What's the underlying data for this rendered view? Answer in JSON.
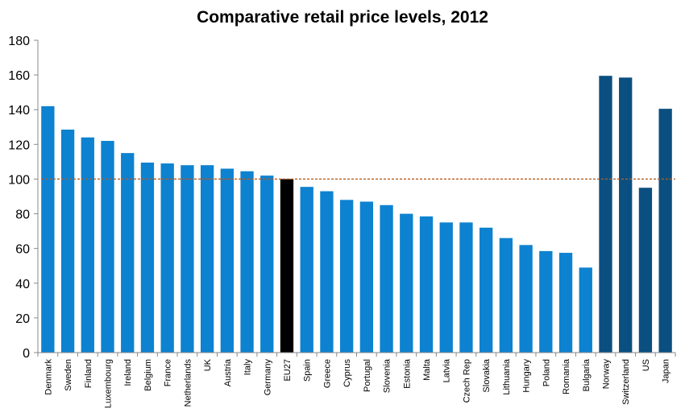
{
  "chart_data": {
    "type": "bar",
    "title": "Comparative retail price levels, 2012",
    "xlabel": "",
    "ylabel": "",
    "ylim": [
      0,
      180
    ],
    "yticks": [
      0,
      20,
      40,
      60,
      80,
      100,
      120,
      140,
      160,
      180
    ],
    "grid": false,
    "legend": "none",
    "reference_line": {
      "value": 100,
      "color": "#b85a1e",
      "style": "dashed"
    },
    "colors": {
      "eu_member": "#0d82d0",
      "eu_average": "#000000",
      "non_eu": "#0b4f80"
    },
    "categories": [
      "Denmark",
      "Sweden",
      "Finland",
      "Luxembourg",
      "Ireland",
      "Belgium",
      "France",
      "Netherlands",
      "UK",
      "Austria",
      "Italy",
      "Germany",
      "EU27",
      "Spain",
      "Greece",
      "Cyprus",
      "Portugal",
      "Slovenia",
      "Estonia",
      "Malta",
      "Latvia",
      "Czech Rep",
      "Slovakia",
      "Lithuania",
      "Hungary",
      "Poland",
      "Romania",
      "Bulgaria",
      "Norway",
      "Switzerland",
      "US",
      "Japan"
    ],
    "values": [
      142,
      128.5,
      124,
      122,
      115,
      109.5,
      109,
      108,
      108,
      106,
      104.5,
      102,
      100,
      95.5,
      93,
      88,
      87,
      85,
      80,
      78.5,
      75,
      75,
      72,
      66,
      62,
      58.5,
      57.5,
      49,
      159.5,
      158.5,
      95,
      140.5
    ],
    "groups": [
      "eu_member",
      "eu_member",
      "eu_member",
      "eu_member",
      "eu_member",
      "eu_member",
      "eu_member",
      "eu_member",
      "eu_member",
      "eu_member",
      "eu_member",
      "eu_member",
      "eu_average",
      "eu_member",
      "eu_member",
      "eu_member",
      "eu_member",
      "eu_member",
      "eu_member",
      "eu_member",
      "eu_member",
      "eu_member",
      "eu_member",
      "eu_member",
      "eu_member",
      "eu_member",
      "eu_member",
      "eu_member",
      "non_eu",
      "non_eu",
      "non_eu",
      "non_eu"
    ]
  }
}
